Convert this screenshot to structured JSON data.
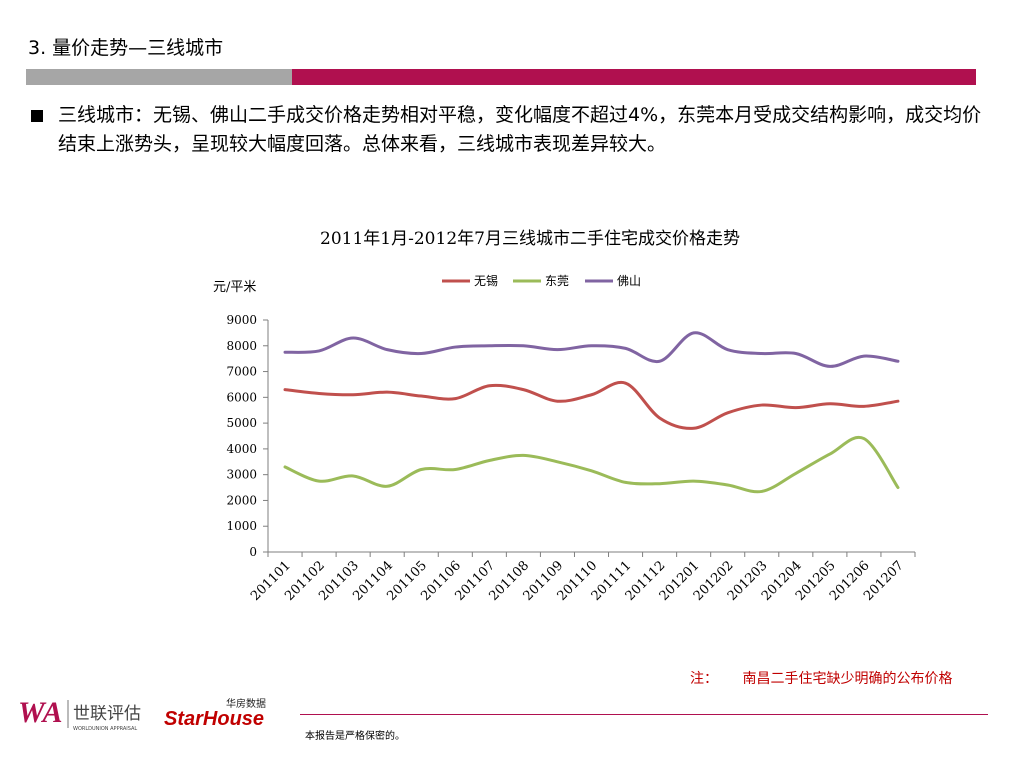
{
  "header": {
    "title": "3. 量价走势—三线城市"
  },
  "bullet": {
    "text": "三线城市：无锡、佛山二手成交价格走势相对平稳，变化幅度不超过4%，东莞本月受成交结构影响，成交均价结束上涨势头，呈现较大幅度回落。总体来看，三线城市表现差异较大。"
  },
  "chart_data": {
    "type": "line",
    "title": "2011年1月-2012年7月三线城市二手住宅成交价格走势",
    "ylabel": "元/平米",
    "xlabel": "",
    "ylim": [
      0,
      9000
    ],
    "yticks": [
      "0",
      "1000",
      "2000",
      "3000",
      "4000",
      "5000",
      "6000",
      "7000",
      "8000",
      "9000"
    ],
    "grid": false,
    "legend": "top",
    "smooth": true,
    "categories": [
      "201101",
      "201102",
      "201103",
      "201104",
      "201105",
      "201106",
      "201107",
      "201108",
      "201109",
      "201110",
      "201111",
      "201112",
      "201201",
      "201202",
      "201203",
      "201204",
      "201205",
      "201206",
      "201207"
    ],
    "series": [
      {
        "name": "无锡",
        "color": "#c0504d",
        "values": [
          6300,
          6150,
          6100,
          6200,
          6050,
          5950,
          6450,
          6300,
          5850,
          6100,
          6550,
          5200,
          4800,
          5400,
          5700,
          5600,
          5750,
          5650,
          5850
        ]
      },
      {
        "name": "东莞",
        "color": "#9bbb59",
        "values": [
          3300,
          2750,
          2950,
          2550,
          3200,
          3200,
          3550,
          3750,
          3500,
          3150,
          2700,
          2650,
          2750,
          2600,
          2350,
          3050,
          3800,
          4400,
          2500
        ]
      },
      {
        "name": "佛山",
        "color": "#8064a2",
        "values": [
          7750,
          7800,
          8300,
          7850,
          7700,
          7950,
          8000,
          8000,
          7850,
          8000,
          7900,
          7400,
          8500,
          7850,
          7700,
          7700,
          7200,
          7600,
          7400
        ]
      }
    ]
  },
  "note": {
    "label": "注：",
    "text": "南昌二手住宅缺少明确的公布价格"
  },
  "footer": {
    "confidential": "本报告是严格保密的。"
  },
  "logos": {
    "wa_letters": "WA",
    "wa_cn": "世联评估",
    "wa_en": "WORLDUNION APPRAISAL",
    "sh_cn": "华房数据",
    "sh_en": "StarHouse"
  }
}
